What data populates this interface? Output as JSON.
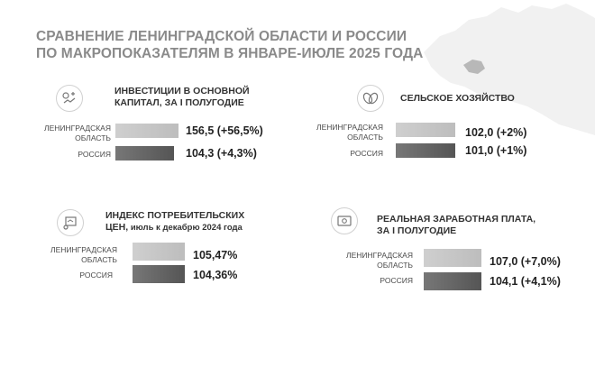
{
  "title_line1": "СРАВНЕНИЕ ЛЕНИНГРАДСКОЙ ОБЛАСТИ И РОССИИ",
  "title_line2": "ПО МАКРОПОКАЗАТЕЛЯМ В ЯНВАРЕ-ИЮЛЕ 2025 ГОДА",
  "colors": {
    "region": "#c4c4c4",
    "russia": "#5e5e5e",
    "title": "#8a8a8a"
  },
  "chart_data": [
    {
      "type": "bar",
      "title_line1": "ИНВЕСТИЦИИ  В ОСНОВНОЙ",
      "title_line2": "КАПИТАЛ, ЗА I ПОЛУГОДИЕ",
      "icon": "investment-icon",
      "categories": [
        "ЛЕНИНГРАДСКАЯ ОБЛАСТЬ",
        "РОССИЯ"
      ],
      "category_lines": [
        [
          "ЛЕНИНГРАДСКАЯ",
          "ОБЛАСТЬ"
        ],
        [
          "РОССИЯ"
        ]
      ],
      "values": [
        156.5,
        104.3
      ],
      "value_labels": [
        "156,5 (+56,5%)",
        "104,3 (+4,3%)"
      ]
    },
    {
      "type": "bar",
      "title_line1": "СЕЛЬСКОЕ ХОЗЯЙСТВО",
      "title_line2": "",
      "icon": "agriculture-icon",
      "categories": [
        "ЛЕНИНГРАДСКАЯ ОБЛАСТЬ",
        "РОССИЯ"
      ],
      "category_lines": [
        [
          "ЛЕНИНГРАДСКАЯ",
          "ОБЛАСТЬ"
        ],
        [
          "РОССИЯ"
        ]
      ],
      "values": [
        102.0,
        101.0
      ],
      "value_labels": [
        "102,0 (+2%)",
        "101,0 (+1%)"
      ]
    },
    {
      "type": "bar",
      "title_line1": "ИНДЕКС ПОТРЕБИТЕЛЬСКИХ",
      "title_line2": "ЦЕН,",
      "title_line2_sub": " июль к декабрю 2024 года",
      "icon": "consumer-index-icon",
      "categories": [
        "ЛЕНИНГРАДСКАЯ ОБЛАСТЬ",
        "РОССИЯ"
      ],
      "category_lines": [
        [
          "ЛЕНИНГРАДСКАЯ",
          "ОБЛАСТЬ"
        ],
        [
          "РОССИЯ"
        ]
      ],
      "values": [
        105.47,
        104.36
      ],
      "value_labels": [
        "105,47%",
        "104,36%"
      ]
    },
    {
      "type": "bar",
      "title_line1": "РЕАЛЬНАЯ ЗАРАБОТНАЯ ПЛАТА,",
      "title_line2": "ЗА I ПОЛУГОДИЕ",
      "icon": "salary-icon",
      "categories": [
        "ЛЕНИНГРАДСКАЯ ОБЛАСТЬ",
        "РОССИЯ"
      ],
      "category_lines": [
        [
          "ЛЕНИНГРАДСКАЯ",
          "ОБЛАСТЬ"
        ],
        [
          "РОССИЯ"
        ]
      ],
      "values": [
        107.0,
        104.1
      ],
      "value_labels": [
        "107,0 (+7,0%)",
        "104,1 (+4,1%)"
      ]
    }
  ]
}
